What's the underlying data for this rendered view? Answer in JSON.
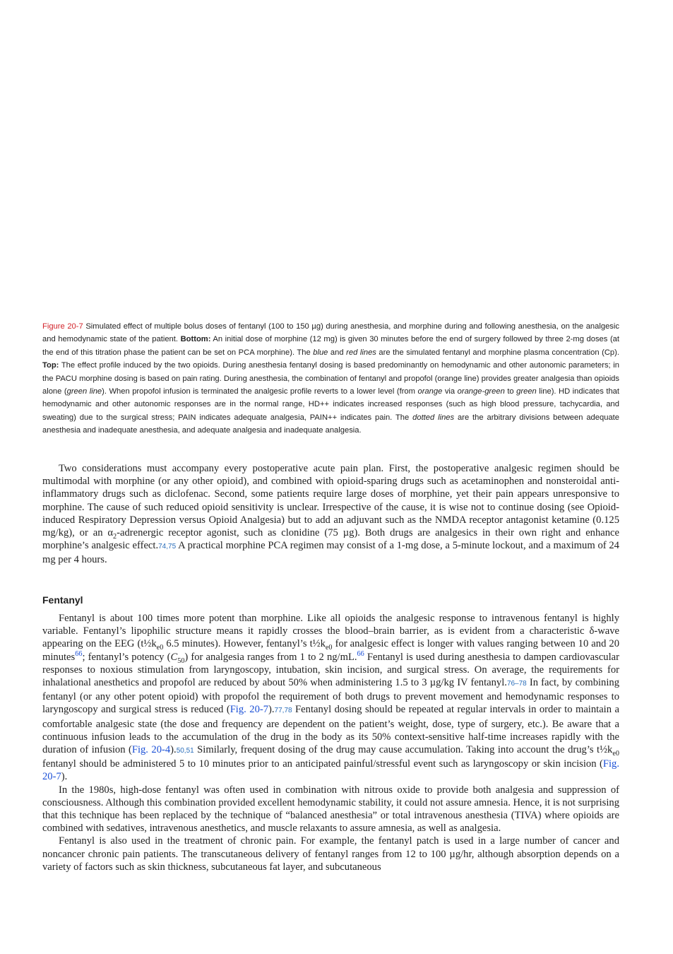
{
  "figure_caption": [
    {
      "label": "Figure 20-7"
    },
    " Simulated effect of multiple bolus doses of fentanyl (100 to 150 µg) during anesthesia, and morphine during and following anesthesia, on the analgesic and hemodynamic state of the patient. ",
    {
      "bold": "Bottom:"
    },
    " An initial dose of morphine (12 mg) is given 30 minutes before the end of surgery followed by three 2-mg doses (at the end of this titration phase the patient can be set on PCA morphine). The ",
    {
      "italic": "blue"
    },
    " and ",
    {
      "italic": "red lines"
    },
    " are the simulated fentanyl and morphine plasma concentration (Cp). ",
    {
      "bold": "Top:"
    },
    " The effect profile induced by the two opioids. During anesthesia fentanyl dosing is based predominantly on hemodynamic and other autonomic parameters; in the PACU morphine dosing is based on pain rating. During anesthesia, the combination of fentanyl and propofol (orange line) provides greater analgesia than opioids alone (",
    {
      "italic": "green line"
    },
    "). When propofol infusion is terminated the analgesic profile reverts to a lower level (from ",
    {
      "italic": "orange"
    },
    " via ",
    {
      "italic": "orange-green"
    },
    " to ",
    {
      "italic": "green"
    },
    " line). HD indicates that hemodynamic and other autonomic responses are in the normal range, HD++ indicates increased responses (such as high blood pressure, tachycardia, and sweating) due to the surgical stress; PAIN indicates adequate analgesia, PAIN++ indicates pain. The ",
    {
      "italic": "dotted lines"
    },
    " are the arbitrary divisions between adequate anesthesia and inadequate anesthesia, and adequate analgesia and inadequate analgesia."
  ],
  "paragraphs": [
    [
      "Two considerations must accompany every postoperative acute pain plan. First, the postoperative analgesic regimen should be multimodal with morphine (or any other opioid), and combined with opioid-sparing drugs such as acetaminophen and nonsteroidal anti-inflammatory drugs such as diclofenac. Second, some patients require large doses of morphine, yet their pain appears unresponsive to morphine. The cause of such reduced opioid sensitivity is unclear. Irrespective of the cause, it is wise not to continue dosing (see Opioid-induced Respiratory Depression versus Opioid Analgesia) but to add an adjuvant such as the NMDA receptor antagonist ketamine (0.125 mg/kg), or an α",
      {
        "sub": "2"
      },
      "-adrenergic receptor agonist, such as clonidine (75 µg). Both drugs are analgesics in their own right and enhance morphine’s analgesic effect.",
      {
        "ref": "74,75"
      },
      " A practical morphine PCA regimen may consist of a 1-mg dose, a 5-minute lockout, and a maximum of 24 mg per 4 hours."
    ]
  ],
  "section": {
    "heading": "Fentanyl",
    "paragraphs": [
      [
        "Fentanyl is about 100 times more potent than morphine. Like all opioids the analgesic response to intravenous fentanyl is highly variable. Fentanyl’s lipophilic structure means it rapidly crosses the blood–brain barrier, as is evident from a characteristic δ-wave appearing on the EEG (t½k",
        {
          "sub": "e0"
        },
        " 6.5 minutes). However, fentanyl’s t½k",
        {
          "sub": "e0"
        },
        " for analgesic effect is longer with values ranging between 10 and 20 minutes",
        {
          "sup": "66"
        },
        "; fentanyl’s potency (",
        {
          "italic": "C"
        },
        {
          "sub": "50"
        },
        ") for analgesia ranges from 1 to 2 ng/mL.",
        {
          "sup": "66"
        },
        " Fentanyl is used during anesthesia to dampen cardiovascular responses to noxious stimulation from laryngoscopy, intubation, skin incision, and surgical stress. On average, the requirements for inhalational anesthetics and propofol are reduced by about 50% when administering 1.5 to 3 µg/kg IV fentanyl.",
        {
          "ref": "76–78"
        },
        " In fact, by combining fentanyl (or any other potent opioid) with propofol the requirement of both drugs to prevent movement and hemodynamic responses to laryngoscopy and surgical stress is reduced (",
        {
          "link": "Fig. 20-7"
        },
        ").",
        {
          "ref": "77,78"
        },
        " Fentanyl dosing should be repeated at regular intervals in order to maintain a comfortable analgesic state (the dose and frequency are dependent on the patient’s weight, dose, type of surgery, etc.). Be aware that a continuous infusion leads to the accumulation of the drug in the body as its 50% context-sensitive half-time increases rapidly with the duration of infusion (",
        {
          "link": "Fig. 20-4"
        },
        ").",
        {
          "ref": "50,51"
        },
        " Similarly, frequent dosing of the drug may cause accumulation. Taking into account the drug’s t½k",
        {
          "sub": "e0"
        },
        " fentanyl should be administered 5 to 10 minutes prior to an anticipated painful/stressful event such as laryngoscopy or skin incision (",
        {
          "link": "Fig. 20-7"
        },
        ")."
      ],
      [
        "In the 1980s, high-dose fentanyl was often used in combination with nitrous oxide to provide both analgesia and suppression of consciousness. Although this combination provided excellent hemodynamic stability, it could not assure amnesia. Hence, it is not surprising that this technique has been replaced by the technique of “balanced anesthesia” or total intravenous anesthesia (TIVA) where opioids are combined with sedatives, intravenous anesthetics, and muscle relaxants to assure amnesia, as well as analgesia."
      ],
      [
        "Fentanyl is also used in the treatment of chronic pain. For example, the fentanyl patch is used in a large number of cancer and noncancer chronic pain patients. The transcutaneous delivery of fentanyl ranges from 12 to 100 µg/hr, although absorption depends on a variety of factors such as skin thickness, subcutaneous fat layer, and subcutaneous"
      ]
    ]
  }
}
